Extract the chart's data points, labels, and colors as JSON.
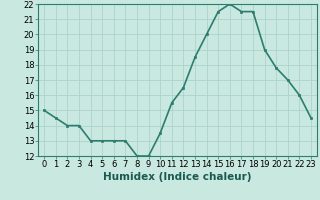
{
  "x": [
    0,
    1,
    2,
    3,
    4,
    5,
    6,
    7,
    8,
    9,
    10,
    11,
    12,
    13,
    14,
    15,
    16,
    17,
    18,
    19,
    20,
    21,
    22,
    23
  ],
  "y": [
    15.0,
    14.5,
    14.0,
    14.0,
    13.0,
    13.0,
    13.0,
    13.0,
    12.0,
    12.0,
    13.5,
    15.5,
    16.5,
    18.5,
    20.0,
    21.5,
    22.0,
    21.5,
    21.5,
    19.0,
    17.8,
    17.0,
    16.0,
    14.5
  ],
  "line_color": "#2d7d6e",
  "marker": "s",
  "marker_size": 2.0,
  "bg_color": "#c8e8e0",
  "grid_color": "#a8cfc8",
  "xlabel": "Humidex (Indice chaleur)",
  "xlabel_fontsize": 7.5,
  "ylim": [
    12,
    22
  ],
  "xlim": [
    -0.5,
    23.5
  ],
  "yticks": [
    12,
    13,
    14,
    15,
    16,
    17,
    18,
    19,
    20,
    21,
    22
  ],
  "xticks": [
    0,
    1,
    2,
    3,
    4,
    5,
    6,
    7,
    8,
    9,
    10,
    11,
    12,
    13,
    14,
    15,
    16,
    17,
    18,
    19,
    20,
    21,
    22,
    23
  ],
  "tick_fontsize": 6.0,
  "line_width": 1.2
}
